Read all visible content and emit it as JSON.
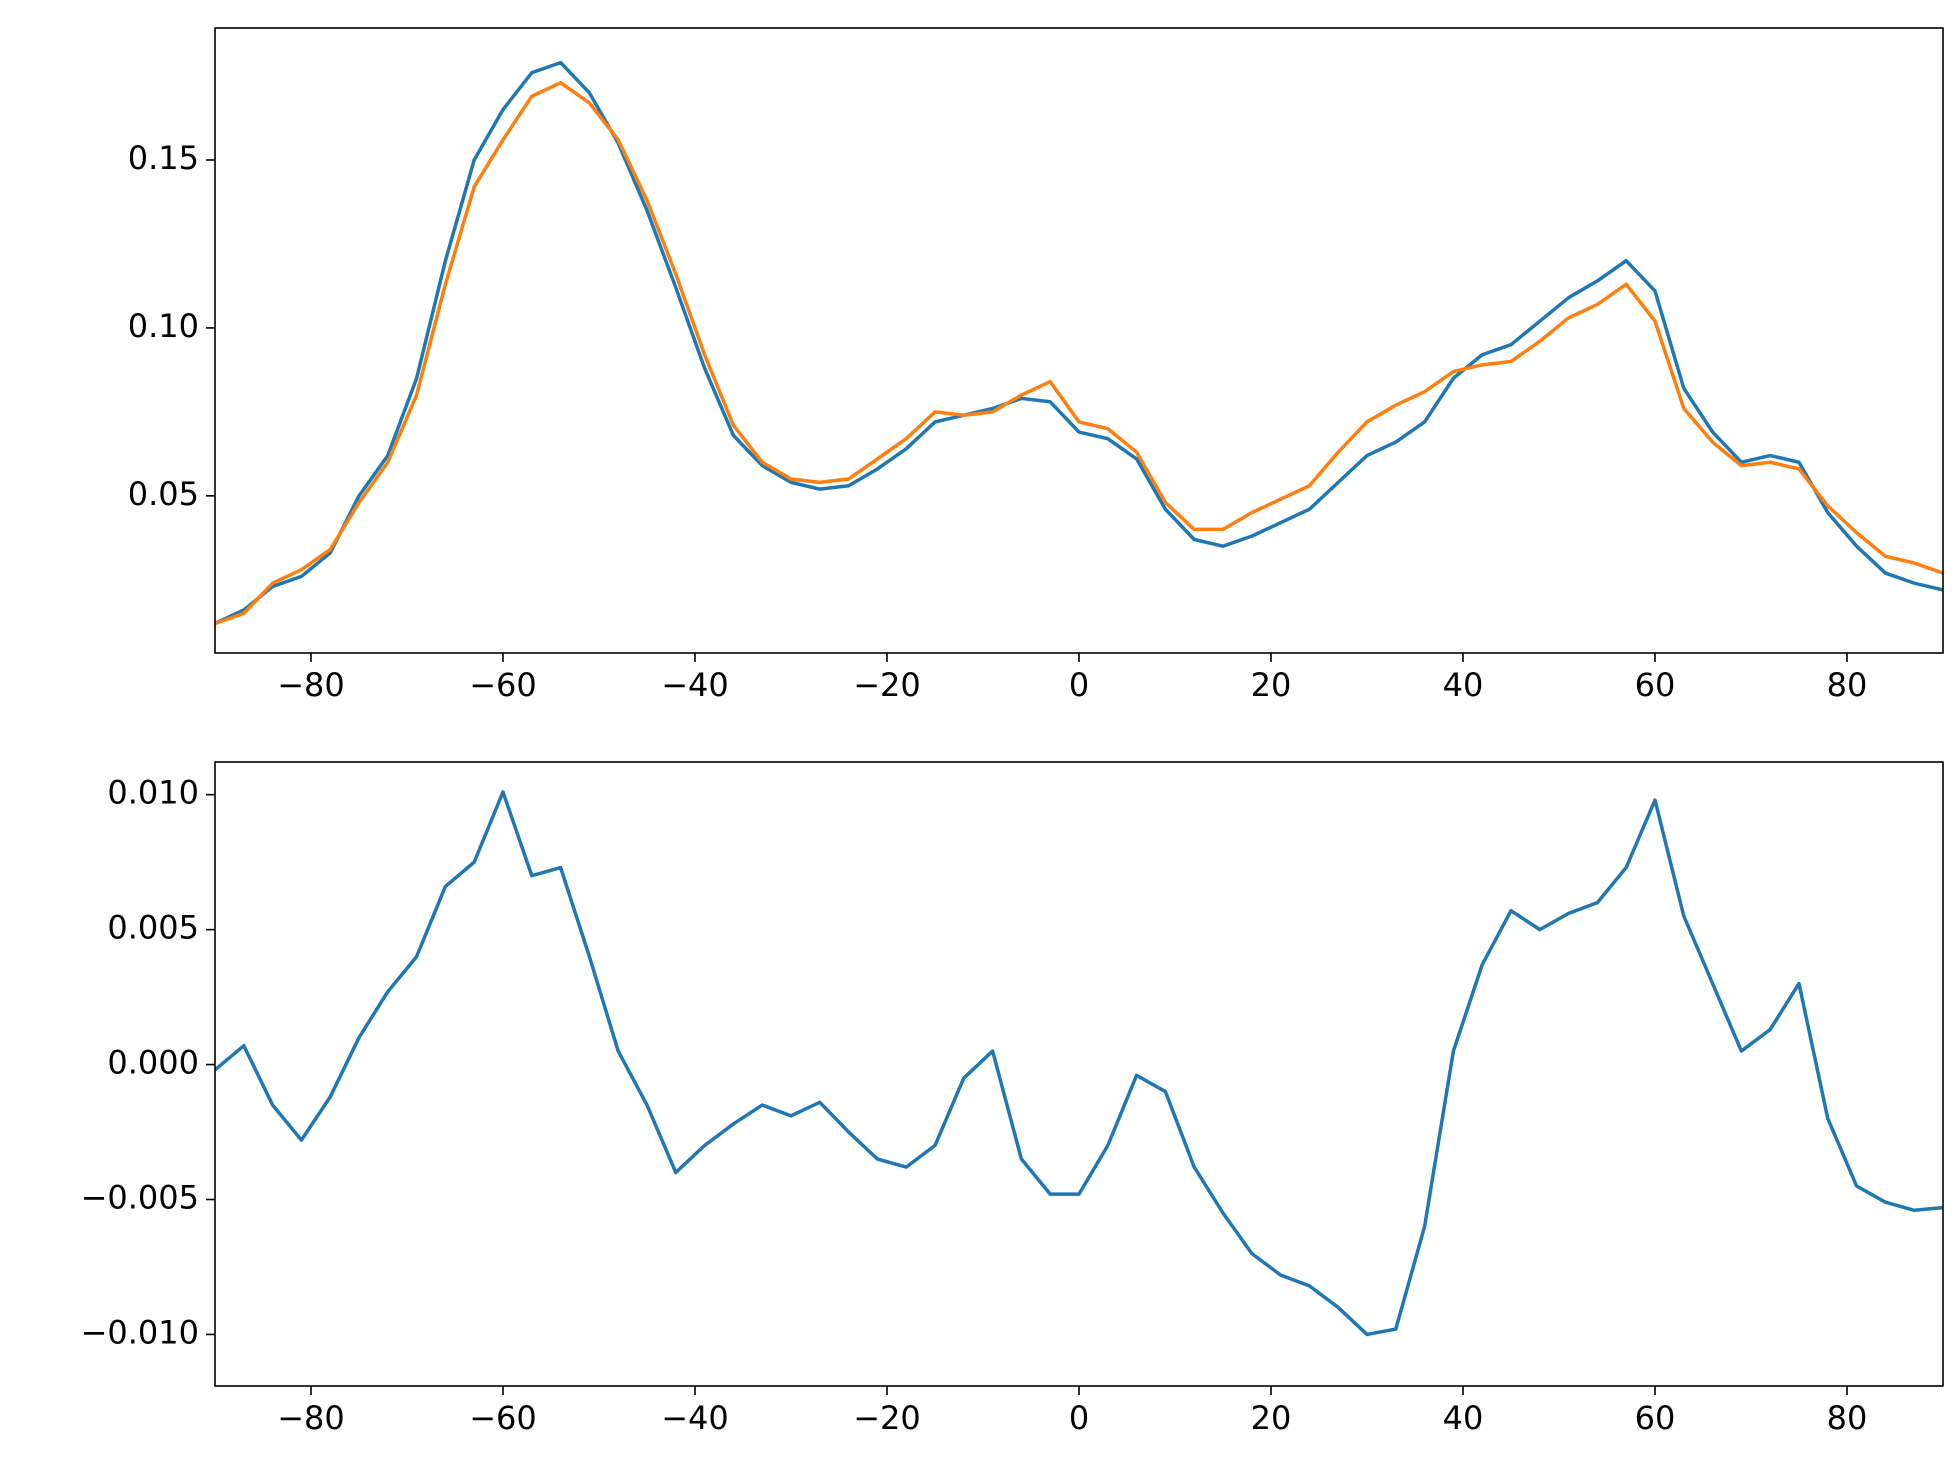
{
  "chart_data": [
    {
      "type": "line",
      "x": [
        -90,
        -87,
        -84,
        -81,
        -78,
        -75,
        -72,
        -69,
        -66,
        -63,
        -60,
        -57,
        -54,
        -51,
        -48,
        -45,
        -42,
        -39,
        -36,
        -33,
        -30,
        -27,
        -24,
        -21,
        -18,
        -15,
        -12,
        -9,
        -6,
        -3,
        0,
        3,
        6,
        9,
        12,
        15,
        18,
        21,
        24,
        27,
        30,
        33,
        36,
        39,
        42,
        45,
        48,
        51,
        54,
        57,
        60,
        63,
        66,
        69,
        72,
        75,
        78,
        81,
        84,
        87,
        90
      ],
      "series": [
        {
          "color": "#1f77b4",
          "values": [
            0.012,
            0.016,
            0.023,
            0.026,
            0.033,
            0.05,
            0.062,
            0.085,
            0.12,
            0.15,
            0.165,
            0.176,
            0.179,
            0.17,
            0.155,
            0.135,
            0.112,
            0.088,
            0.068,
            0.059,
            0.054,
            0.052,
            0.053,
            0.058,
            0.064,
            0.072,
            0.074,
            0.076,
            0.079,
            0.078,
            0.069,
            0.067,
            0.061,
            0.046,
            0.037,
            0.035,
            0.038,
            0.042,
            0.046,
            0.054,
            0.062,
            0.066,
            0.072,
            0.085,
            0.092,
            0.095,
            0.102,
            0.109,
            0.114,
            0.12,
            0.111,
            0.082,
            0.069,
            0.06,
            0.062,
            0.06,
            0.045,
            0.035,
            0.027,
            0.024,
            0.022
          ]
        },
        {
          "color": "#ff7f0e",
          "values": [
            0.012,
            0.015,
            0.024,
            0.028,
            0.034,
            0.048,
            0.06,
            0.08,
            0.113,
            0.142,
            0.156,
            0.169,
            0.173,
            0.167,
            0.156,
            0.138,
            0.116,
            0.092,
            0.071,
            0.06,
            0.055,
            0.054,
            0.055,
            0.061,
            0.067,
            0.075,
            0.074,
            0.075,
            0.08,
            0.084,
            0.072,
            0.07,
            0.063,
            0.048,
            0.04,
            0.04,
            0.045,
            0.049,
            0.053,
            0.063,
            0.072,
            0.077,
            0.081,
            0.087,
            0.089,
            0.09,
            0.096,
            0.103,
            0.107,
            0.113,
            0.102,
            0.076,
            0.066,
            0.059,
            0.06,
            0.058,
            0.047,
            0.039,
            0.032,
            0.03,
            0.027
          ]
        }
      ],
      "xlim": [
        -90,
        90
      ],
      "xticks": [
        {
          "value": -80,
          "label": "−80"
        },
        {
          "value": -60,
          "label": "−60"
        },
        {
          "value": -40,
          "label": "−40"
        },
        {
          "value": -20,
          "label": "−20"
        },
        0,
        20,
        40,
        60,
        80
      ],
      "ylim": [
        0.0032,
        0.1893
      ],
      "yticks": [
        0.05,
        {
          "value": 0.1,
          "label": "0.10"
        },
        0.15
      ]
    },
    {
      "type": "line",
      "x": [
        -90,
        -87,
        -84,
        -81,
        -78,
        -75,
        -72,
        -69,
        -66,
        -63,
        -60,
        -57,
        -54,
        -51,
        -48,
        -45,
        -42,
        -39,
        -36,
        -33,
        -30,
        -27,
        -24,
        -21,
        -18,
        -15,
        -12,
        -9,
        -6,
        -3,
        0,
        3,
        6,
        9,
        12,
        15,
        18,
        21,
        24,
        27,
        30,
        33,
        36,
        39,
        42,
        45,
        48,
        51,
        54,
        57,
        60,
        63,
        66,
        69,
        72,
        75,
        78,
        81,
        84,
        87,
        90
      ],
      "series": [
        {
          "color": "#1f77b4",
          "values": [
            -0.0002,
            0.0007,
            -0.0015,
            -0.0028,
            -0.0012,
            0.001,
            0.0027,
            0.004,
            0.0066,
            0.0075,
            0.0101,
            0.007,
            0.0073,
            0.004,
            0.0005,
            -0.0015,
            -0.004,
            -0.003,
            -0.0022,
            -0.0015,
            -0.0019,
            -0.0014,
            -0.0025,
            -0.0035,
            -0.0038,
            -0.003,
            -0.0005,
            0.0005,
            -0.0035,
            -0.0048,
            -0.0048,
            -0.003,
            -0.0004,
            -0.001,
            -0.0038,
            -0.0055,
            -0.007,
            -0.0078,
            -0.0082,
            -0.009,
            -0.01,
            -0.0098,
            -0.006,
            0.0005,
            0.0037,
            0.0057,
            0.005,
            0.0056,
            0.006,
            0.0073,
            0.0098,
            0.0055,
            0.003,
            0.0005,
            0.0013,
            0.003,
            -0.002,
            -0.0045,
            -0.0051,
            -0.0054,
            -0.0053
          ]
        }
      ],
      "xlim": [
        -90,
        90
      ],
      "xticks": [
        {
          "value": -80,
          "label": "−80"
        },
        {
          "value": -60,
          "label": "−60"
        },
        {
          "value": -40,
          "label": "−40"
        },
        {
          "value": -20,
          "label": "−20"
        },
        0,
        20,
        40,
        60,
        80
      ],
      "ylim": [
        -0.01191,
        0.01121
      ],
      "yticks": [
        {
          "value": -0.01,
          "label": "−0.010"
        },
        {
          "value": -0.005,
          "label": "−0.005"
        },
        {
          "value": 0,
          "label": "0.000"
        },
        0.005,
        {
          "value": 0.01,
          "label": "0.010"
        }
      ]
    }
  ]
}
